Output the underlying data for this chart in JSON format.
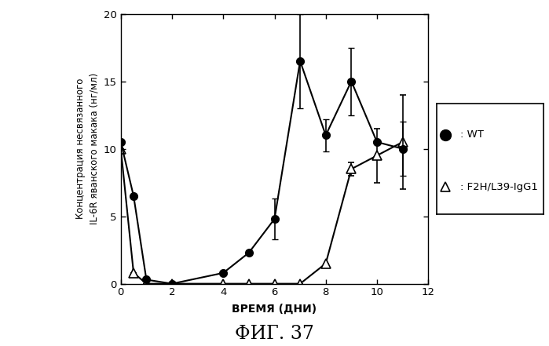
{
  "wt_x": [
    0,
    0.5,
    1,
    2,
    4,
    5,
    6,
    7,
    8,
    9,
    10,
    11
  ],
  "wt_y": [
    10.5,
    6.5,
    0.3,
    0.0,
    0.8,
    2.3,
    4.8,
    16.5,
    11.0,
    15.0,
    10.5,
    10.0
  ],
  "wt_yerr_lo": [
    0.0,
    0.0,
    0.0,
    0.0,
    0.0,
    0.0,
    1.5,
    3.5,
    1.2,
    2.5,
    0.0,
    2.0
  ],
  "wt_yerr_hi": [
    0.0,
    0.0,
    0.0,
    0.0,
    0.0,
    0.0,
    1.5,
    3.5,
    1.2,
    2.5,
    0.0,
    2.0
  ],
  "f2h_x": [
    0,
    0.5,
    1,
    2,
    4,
    5,
    6,
    7,
    8,
    9,
    10,
    11
  ],
  "f2h_y": [
    10.0,
    0.8,
    0.0,
    0.0,
    0.0,
    0.0,
    0.0,
    0.0,
    1.5,
    8.5,
    9.5,
    10.5
  ],
  "f2h_yerr_lo": [
    0.0,
    0.0,
    0.0,
    0.0,
    0.0,
    0.0,
    0.0,
    0.0,
    0.0,
    0.5,
    2.0,
    3.5
  ],
  "f2h_yerr_hi": [
    0.0,
    0.0,
    0.0,
    0.0,
    0.0,
    0.0,
    0.0,
    0.0,
    0.0,
    0.5,
    2.0,
    3.5
  ],
  "xlabel": "ВРЕМЯ (ДНИ)",
  "ylabel": "Концентрация несвязанного\nIL-6R яванского макака (нг/мл)",
  "xlim": [
    0,
    12
  ],
  "ylim": [
    0,
    20
  ],
  "xticks": [
    0,
    2,
    4,
    6,
    8,
    10,
    12
  ],
  "yticks": [
    0,
    5,
    10,
    15,
    20
  ],
  "legend_wt": ": WT",
  "legend_f2h": ": F2H/L39-IgG1",
  "figure_label": "ФИГ. 37",
  "bg_color": "#ffffff",
  "line_color": "#000000"
}
